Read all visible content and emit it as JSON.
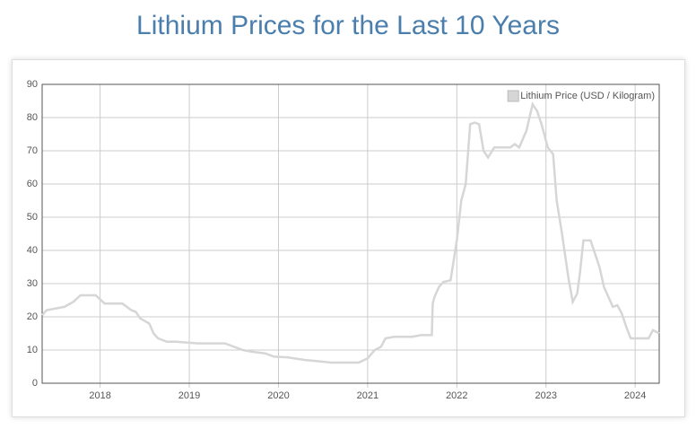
{
  "chart_data": {
    "type": "line",
    "title": "Lithium Prices for the Last 10 Years",
    "x": [
      2017.35,
      2017.4,
      2017.5,
      2017.6,
      2017.7,
      2017.78,
      2017.95,
      2018.05,
      2018.25,
      2018.35,
      2018.4,
      2018.45,
      2018.55,
      2018.6,
      2018.65,
      2018.75,
      2018.85,
      2019.0,
      2019.1,
      2019.2,
      2019.4,
      2019.5,
      2019.6,
      2019.7,
      2019.85,
      2019.95,
      2020.1,
      2020.3,
      2020.5,
      2020.6,
      2020.9,
      2021.0,
      2021.08,
      2021.15,
      2021.2,
      2021.3,
      2021.5,
      2021.6,
      2021.72,
      2021.73,
      2021.75,
      2021.8,
      2021.85,
      2021.93,
      2022.0,
      2022.05,
      2022.1,
      2022.15,
      2022.2,
      2022.25,
      2022.3,
      2022.35,
      2022.42,
      2022.5,
      2022.6,
      2022.65,
      2022.7,
      2022.78,
      2022.85,
      2022.9,
      2022.95,
      2023.02,
      2023.08,
      2023.12,
      2023.18,
      2023.25,
      2023.3,
      2023.35,
      2023.38,
      2023.42,
      2023.5,
      2023.6,
      2023.65,
      2023.75,
      2023.8,
      2023.85,
      2023.9,
      2023.95,
      2024.05,
      2024.15,
      2024.2,
      2024.27
    ],
    "series": [
      {
        "name": "Lithium Price (USD / Kilogram)",
        "color": "#d6d6d6",
        "values": [
          20.5,
          22,
          22.5,
          23,
          24.5,
          26.5,
          26.5,
          24,
          24,
          22,
          21.5,
          19.5,
          18,
          15,
          13.5,
          12.5,
          12.5,
          12.2,
          12,
          12,
          12,
          11,
          10,
          9.5,
          9,
          8,
          7.8,
          7,
          6.5,
          6.2,
          6.2,
          7.5,
          10,
          11,
          13.5,
          14,
          14,
          14.5,
          14.5,
          24,
          26,
          29,
          30.5,
          31,
          43,
          55,
          60,
          78,
          78.5,
          78,
          70,
          68,
          71,
          71,
          71,
          72,
          71,
          76,
          84,
          82,
          78,
          71,
          69,
          55,
          45,
          32,
          24.5,
          27,
          33,
          43,
          43,
          35,
          29,
          23,
          23.5,
          21,
          17,
          13.5,
          13.5,
          13.5,
          16,
          15
        ]
      }
    ],
    "xlim": [
      2017.35,
      2024.27
    ],
    "xticks": [
      2018,
      2019,
      2020,
      2021,
      2022,
      2023,
      2024
    ],
    "ylim": [
      0,
      90
    ],
    "yticks": [
      0,
      10,
      20,
      30,
      40,
      50,
      60,
      70,
      80,
      90
    ],
    "grid": true,
    "legend": "top-right"
  }
}
